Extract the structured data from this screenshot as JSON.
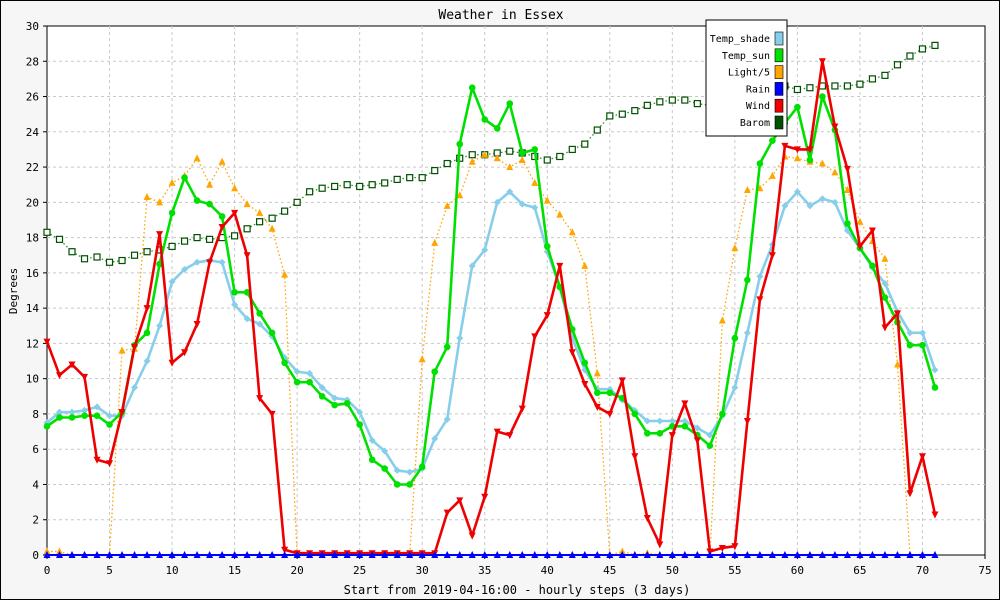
{
  "chart_data": {
    "type": "line",
    "title": "Weather in Essex",
    "xlabel": "Start from 2019-04-16:00 - hourly steps (3 days)",
    "ylabel": "Degrees",
    "xlim": [
      0,
      75
    ],
    "ylim": [
      0,
      30
    ],
    "xticks": [
      0,
      5,
      10,
      15,
      20,
      25,
      30,
      35,
      40,
      45,
      50,
      55,
      60,
      65,
      70,
      75
    ],
    "yticks": [
      0,
      2,
      4,
      6,
      8,
      10,
      12,
      14,
      16,
      18,
      20,
      22,
      24,
      26,
      28,
      30
    ],
    "grid": true,
    "legend_position": "top-right",
    "series": [
      {
        "name": "Temp_shade",
        "color": "#87CEEB",
        "marker": "diamond",
        "style": "solid",
        "values": [
          7.5,
          8.1,
          8.1,
          8.2,
          8.4,
          7.9,
          7.9,
          9.5,
          11.0,
          13.0,
          15.5,
          16.2,
          16.6,
          16.7,
          16.6,
          14.2,
          13.4,
          13.1,
          12.4,
          11.2,
          10.4,
          10.3,
          9.5,
          8.9,
          8.8,
          8.1,
          6.5,
          5.9,
          4.8,
          4.7,
          4.9,
          6.6,
          7.7,
          12.3,
          16.4,
          17.3,
          20.0,
          20.6,
          19.9,
          19.7,
          17.2,
          15.2,
          12.3,
          10.5,
          9.4,
          9.4,
          8.8,
          8.2,
          7.6,
          7.6,
          7.6,
          7.6,
          7.2,
          6.8,
          7.9,
          9.5,
          12.6,
          15.8,
          17.6,
          19.8,
          20.6,
          19.8,
          20.2,
          20.0,
          18.4,
          17.4,
          16.3,
          15.4,
          13.8,
          12.6,
          12.6,
          10.5
        ]
      },
      {
        "name": "Temp_sun",
        "color": "#00E000",
        "marker": "circle",
        "style": "solid",
        "values": [
          7.3,
          7.8,
          7.8,
          7.9,
          7.9,
          7.4,
          8.1,
          11.9,
          12.6,
          16.5,
          19.4,
          21.4,
          20.1,
          19.9,
          19.2,
          14.9,
          14.9,
          13.7,
          12.6,
          10.9,
          9.8,
          9.8,
          9.0,
          8.5,
          8.6,
          7.4,
          5.4,
          4.9,
          4.0,
          4.0,
          5.0,
          10.4,
          11.8,
          23.3,
          26.5,
          24.7,
          24.2,
          25.6,
          22.8,
          23.0,
          17.5,
          15.2,
          12.8,
          10.9,
          9.2,
          9.2,
          8.9,
          8.0,
          6.9,
          6.9,
          7.3,
          7.3,
          6.8,
          6.2,
          8.0,
          12.3,
          15.6,
          22.2,
          23.5,
          24.5,
          25.4,
          22.4,
          26.0,
          24.1,
          18.8,
          17.4,
          16.4,
          14.6,
          13.2,
          11.9,
          11.9,
          9.5
        ]
      },
      {
        "name": "Light/5",
        "color": "#FFA500",
        "marker": "triangle-up",
        "style": "dotted",
        "values": [
          0.2,
          0.2,
          0,
          0,
          0,
          0,
          11.6,
          11.7,
          20.3,
          20.0,
          21.1,
          21.5,
          22.5,
          21.0,
          22.3,
          20.8,
          19.9,
          19.4,
          18.5,
          15.9,
          0,
          0,
          0,
          0,
          0,
          0,
          0,
          0,
          0,
          0,
          11.1,
          17.7,
          19.8,
          20.4,
          22.3,
          22.7,
          22.5,
          22.0,
          22.4,
          21.1,
          20.1,
          19.3,
          18.3,
          16.4,
          10.3,
          0,
          0.2,
          0,
          0.1,
          0,
          0,
          0,
          0,
          0,
          13.3,
          17.4,
          20.7,
          20.8,
          21.5,
          22.6,
          22.5,
          22.3,
          22.2,
          21.7,
          20.7,
          18.9,
          17.8,
          16.8,
          10.8,
          0,
          0,
          0
        ]
      },
      {
        "name": "Rain",
        "color": "#0000FF",
        "marker": "triangle-up",
        "style": "solid",
        "values": [
          0,
          0,
          0,
          0,
          0,
          0,
          0,
          0,
          0,
          0,
          0,
          0,
          0,
          0,
          0,
          0,
          0,
          0,
          0,
          0,
          0,
          0,
          0,
          0,
          0,
          0,
          0,
          0,
          0,
          0,
          0,
          0,
          0,
          0,
          0,
          0,
          0,
          0,
          0,
          0,
          0,
          0,
          0,
          0,
          0,
          0,
          0,
          0,
          0,
          0,
          0,
          0,
          0,
          0,
          0,
          0,
          0,
          0,
          0,
          0,
          0,
          0,
          0,
          0,
          0,
          0,
          0,
          0,
          0,
          0,
          0,
          0
        ]
      },
      {
        "name": "Wind",
        "color": "#EE0000",
        "marker": "triangle-down",
        "style": "solid",
        "values": [
          12.1,
          10.2,
          10.8,
          10.1,
          5.4,
          5.2,
          8.1,
          11.8,
          14.0,
          18.2,
          10.9,
          11.5,
          13.1,
          16.6,
          18.6,
          19.4,
          17.0,
          8.9,
          8.0,
          0.3,
          0.1,
          0.1,
          0.1,
          0.1,
          0.1,
          0.1,
          0.1,
          0.1,
          0.1,
          0.1,
          0.1,
          0.1,
          2.4,
          3.1,
          1.1,
          3.3,
          7.0,
          6.8,
          8.3,
          12.4,
          13.6,
          16.4,
          11.5,
          9.7,
          8.4,
          8.0,
          9.9,
          5.6,
          2.1,
          0.6,
          6.8,
          8.6,
          6.5,
          0.2,
          0.4,
          0.5,
          7.6,
          14.5,
          17.0,
          23.2,
          23.0,
          23.0,
          28.0,
          24.3,
          21.9,
          17.5,
          18.4,
          12.9,
          13.7,
          3.5,
          5.6,
          2.3
        ]
      },
      {
        "name": "Barom",
        "color": "#005000",
        "marker": "square",
        "style": "dotted",
        "values": [
          18.3,
          17.9,
          17.2,
          16.8,
          16.9,
          16.6,
          16.7,
          17.0,
          17.2,
          17.3,
          17.5,
          17.8,
          18.0,
          17.9,
          18.0,
          18.1,
          18.5,
          18.9,
          19.1,
          19.5,
          20.0,
          20.6,
          20.8,
          20.9,
          21.0,
          20.9,
          21.0,
          21.1,
          21.3,
          21.4,
          21.4,
          21.8,
          22.2,
          22.5,
          22.7,
          22.7,
          22.8,
          22.9,
          22.8,
          22.6,
          22.4,
          22.6,
          23.0,
          23.3,
          24.1,
          24.9,
          25.0,
          25.2,
          25.5,
          25.7,
          25.8,
          25.8,
          25.6,
          25.5,
          25.5,
          25.7,
          25.8,
          25.8,
          26.1,
          26.6,
          26.4,
          26.5,
          26.6,
          26.6,
          26.6,
          26.7,
          27.0,
          27.2,
          27.8,
          28.3,
          28.7,
          28.9
        ]
      }
    ]
  }
}
